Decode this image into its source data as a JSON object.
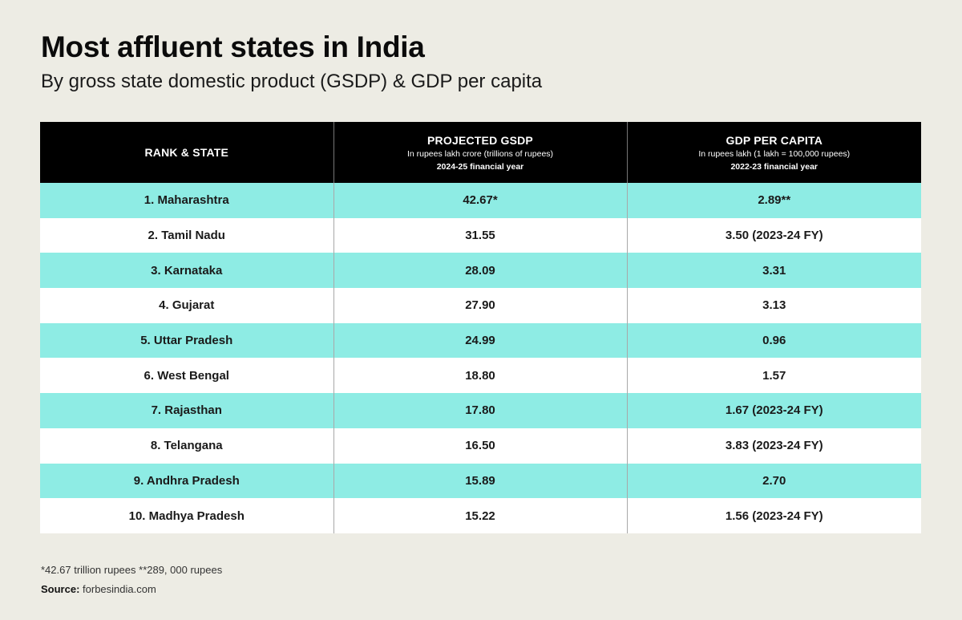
{
  "title": "Most affluent states in India",
  "subtitle": "By gross state domestic product (GSDP) & GDP per capita",
  "colors": {
    "background": "#edece4",
    "header_bg": "#000000",
    "stripe": "#8eece4",
    "row_alt": "#ffffff"
  },
  "chart_data": {
    "type": "table",
    "columns": [
      {
        "title": "RANK & STATE",
        "note": "",
        "year": ""
      },
      {
        "title": "PROJECTED GSDP",
        "note": "In rupees lakh crore (trillions of rupees)",
        "year": "2024-25 financial year"
      },
      {
        "title": "GDP PER CAPITA",
        "note": "In rupees lakh (1 lakh = 100,000 rupees)",
        "year": "2022-23 financial year"
      }
    ],
    "rows": [
      [
        "1. Maharashtra",
        "42.67*",
        "2.89**"
      ],
      [
        "2. Tamil Nadu",
        "31.55",
        "3.50 (2023-24 FY)"
      ],
      [
        "3. Karnataka",
        "28.09",
        "3.31"
      ],
      [
        "4. Gujarat",
        "27.90",
        "3.13"
      ],
      [
        "5. Uttar Pradesh",
        "24.99",
        "0.96"
      ],
      [
        "6. West Bengal",
        "18.80",
        "1.57"
      ],
      [
        "7. Rajasthan",
        "17.80",
        "1.67 (2023-24 FY)"
      ],
      [
        "8. Telangana",
        "16.50",
        "3.83 (2023-24 FY)"
      ],
      [
        "9. Andhra Pradesh",
        "15.89",
        "2.70"
      ],
      [
        "10. Madhya Pradesh",
        "15.22",
        "1.56 (2023-24 FY)"
      ]
    ]
  },
  "footnote": "*42.67 trillion rupees **289, 000 rupees",
  "source": {
    "label": "Source:",
    "value": "forbesindia.com"
  }
}
